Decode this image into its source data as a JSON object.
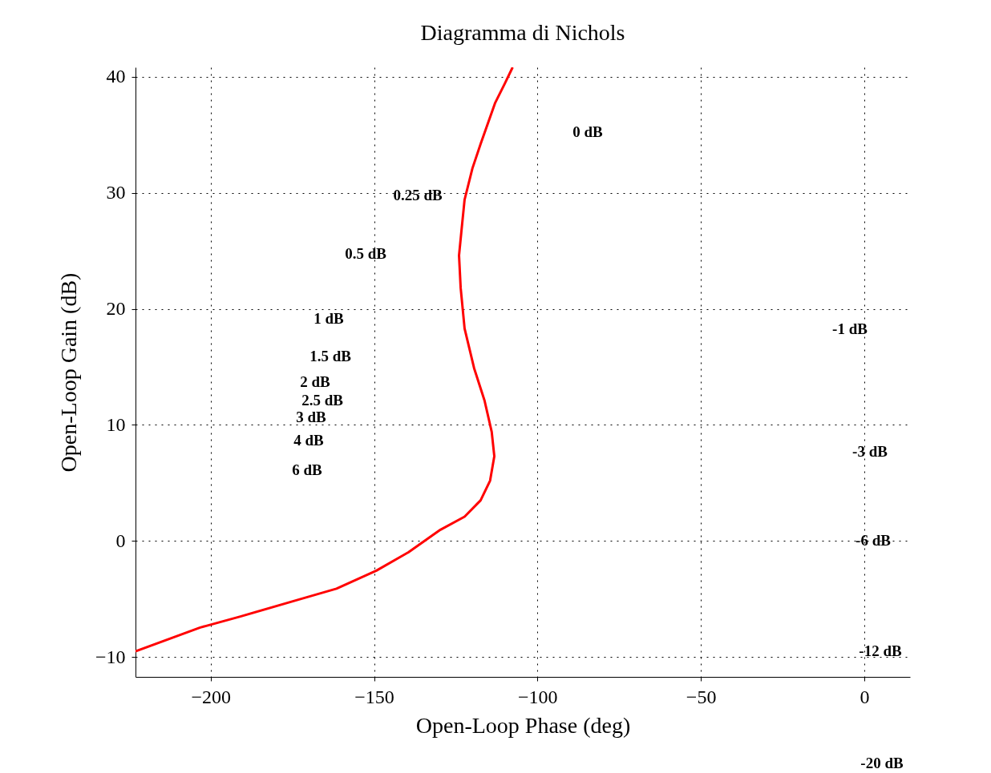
{
  "chart_data": {
    "type": "line",
    "title": "Diagramma di Nichols",
    "xlabel": "Open-Loop Phase (deg)",
    "ylabel": "Open-Loop Gain (dB)",
    "x": [
      -223,
      -203.2,
      -190.9,
      -173.8,
      -161.5,
      -149.3,
      -139.5,
      -129.7,
      -122.3,
      -117.4,
      -114.5,
      -113.2,
      -114,
      -116.2,
      -119.4,
      -122.3,
      -123.5,
      -124,
      -123.3,
      -122.3,
      -119.9,
      -117.4,
      -113,
      -110,
      -107.6
    ],
    "series": [
      {
        "color": "#ff0000",
        "values": [
          -9.5,
          -7.45,
          -6.5,
          -5.1,
          -4.1,
          -2.55,
          -0.97,
          0.97,
          2.1,
          3.5,
          5.2,
          7.3,
          9.4,
          12.1,
          14.9,
          18.3,
          21.8,
          24.6,
          26.6,
          29.4,
          32.1,
          34.2,
          37.7,
          39.4,
          40.8
        ]
      }
    ],
    "xlim": [
      -223,
      14
    ],
    "xticks": [
      -200,
      -150,
      -100,
      -50,
      0
    ],
    "ylim": [
      -11.7,
      40.8
    ],
    "yticks": [
      -10,
      0,
      10,
      20,
      30,
      40
    ],
    "grid": true,
    "line_style": "solid",
    "annotations": [
      "0 dB",
      "0.25 dB",
      "0.5 dB",
      "1 dB",
      "1.5 dB",
      "2 dB",
      "2.5 dB",
      "3 dB",
      "4 dB",
      "6 dB",
      "-1 dB",
      "-3 dB",
      "-6 dB",
      "-12 dB",
      "-20 dB"
    ]
  }
}
